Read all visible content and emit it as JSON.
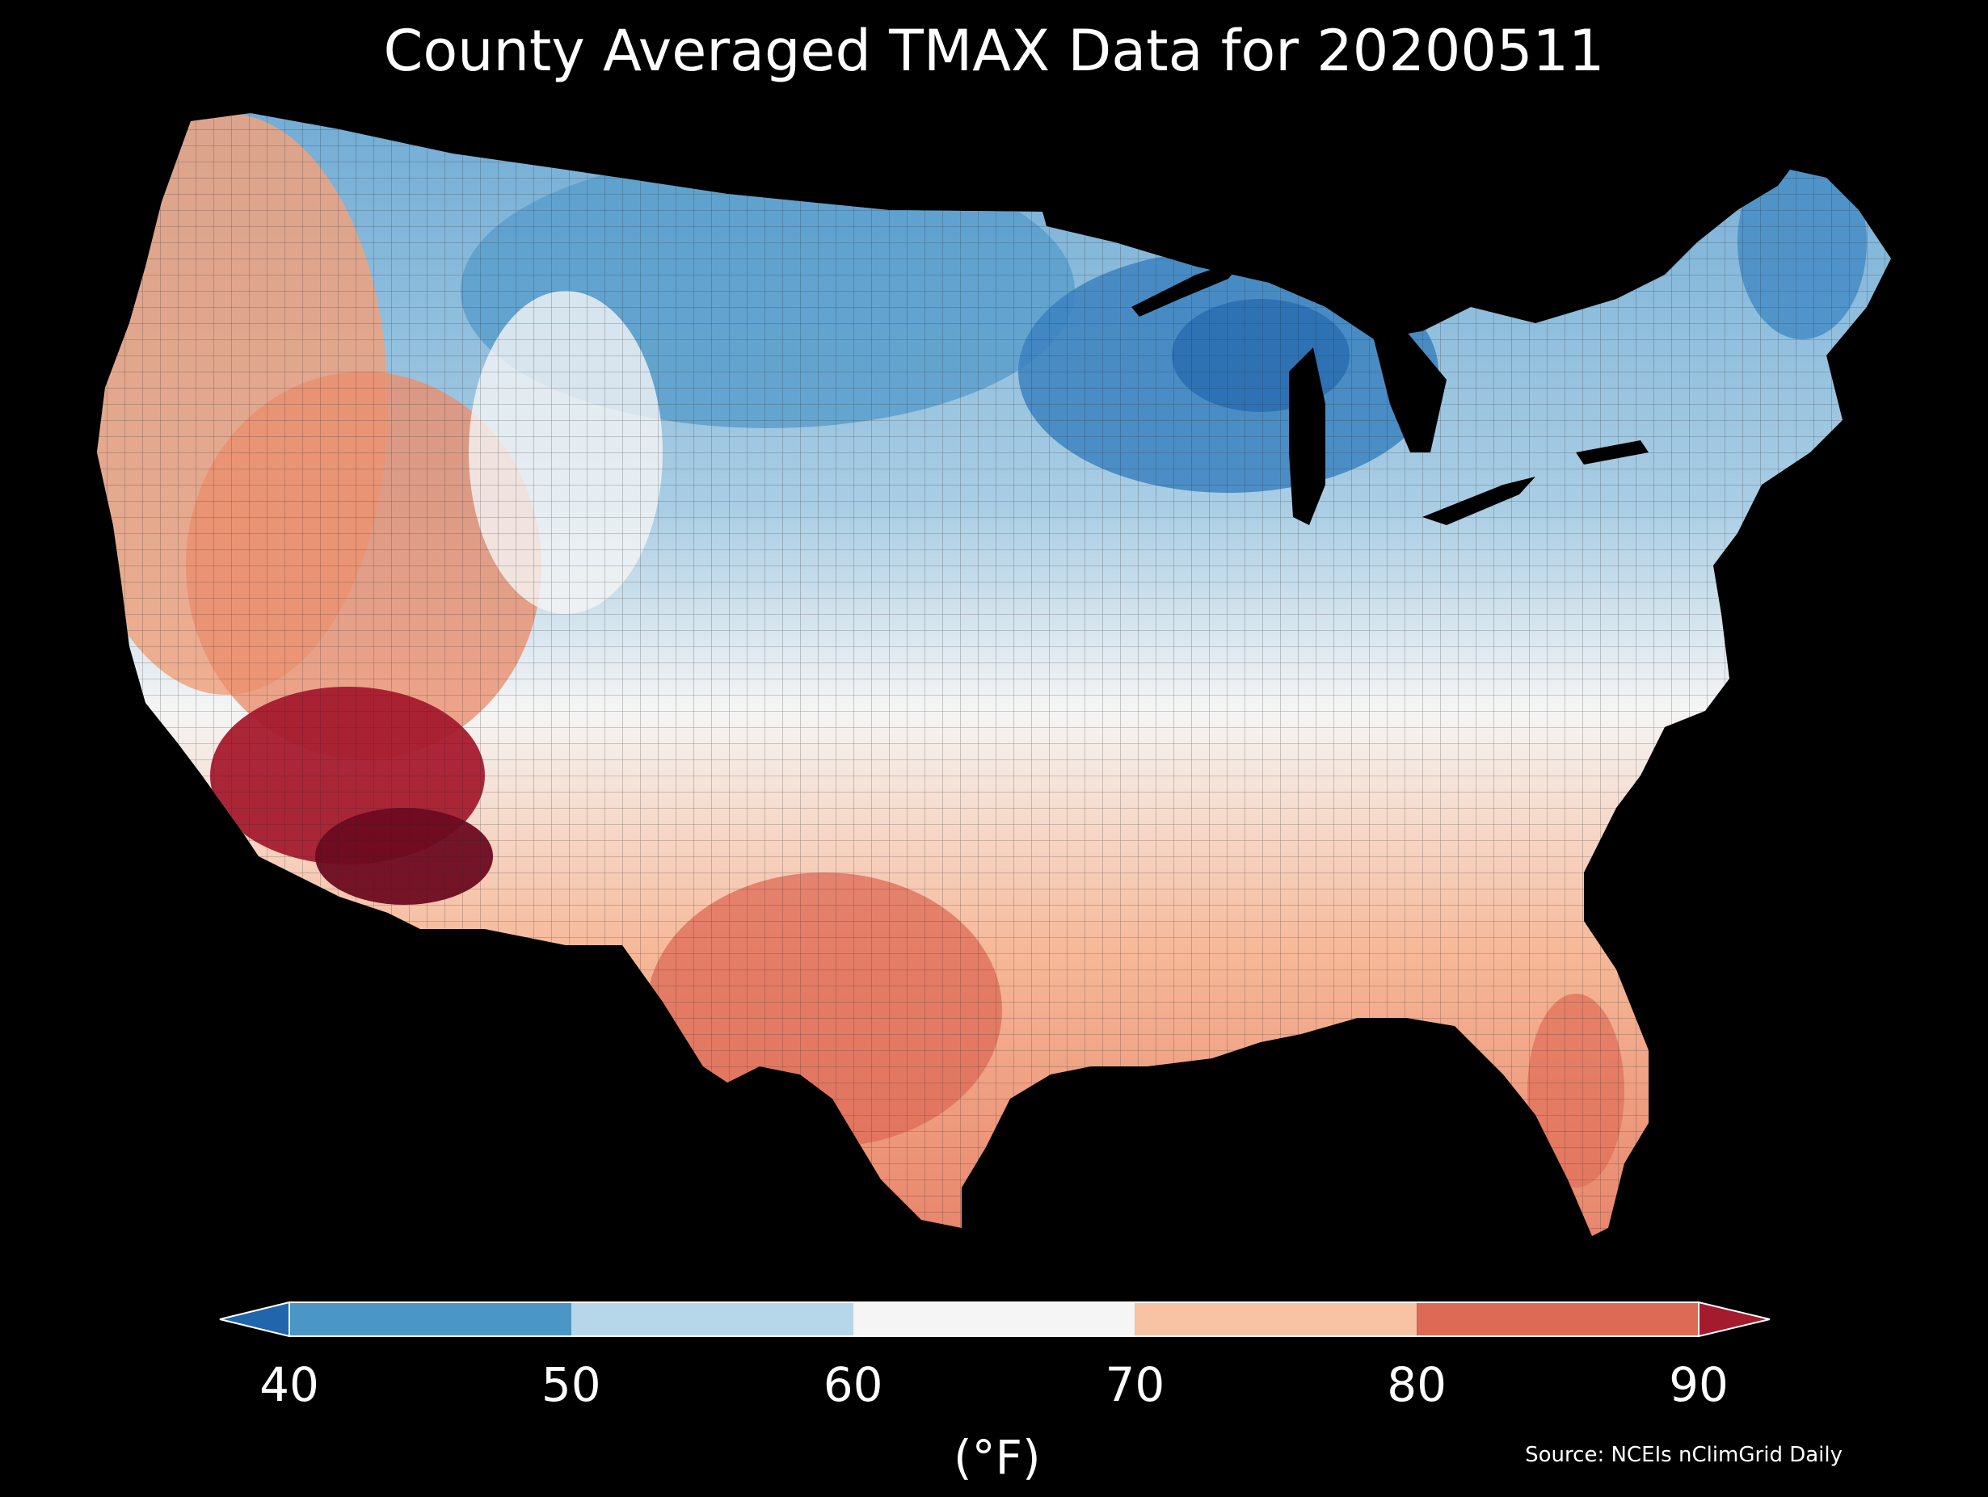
{
  "title": "County Averaged TMAX Data for 20200511",
  "colorbar": {
    "label": "(°F)",
    "ticks": [
      "40",
      "50",
      "60",
      "70",
      "80",
      "90"
    ],
    "bins": [
      {
        "from": 40,
        "to": 50,
        "color": "#4a96c7"
      },
      {
        "from": 50,
        "to": 60,
        "color": "#b6d7ea"
      },
      {
        "from": 60,
        "to": 70,
        "color": "#f5f5f5"
      },
      {
        "from": 70,
        "to": 80,
        "color": "#f8c3a4"
      },
      {
        "from": 80,
        "to": 90,
        "color": "#dd6a55"
      }
    ],
    "under_color": "#2166ac",
    "over_color": "#a51b2e"
  },
  "source": "Source: NCEIs nClimGrid Daily",
  "map_colors": {
    "cold_core": "#2b6fb3",
    "cold": "#5a9fcc",
    "cool": "#b6d7ea",
    "neutral": "#f5f5f5",
    "warm": "#f8c3a4",
    "hot": "#dd6a55",
    "very_hot": "#a51b2e",
    "extreme": "#6e0a20"
  }
}
